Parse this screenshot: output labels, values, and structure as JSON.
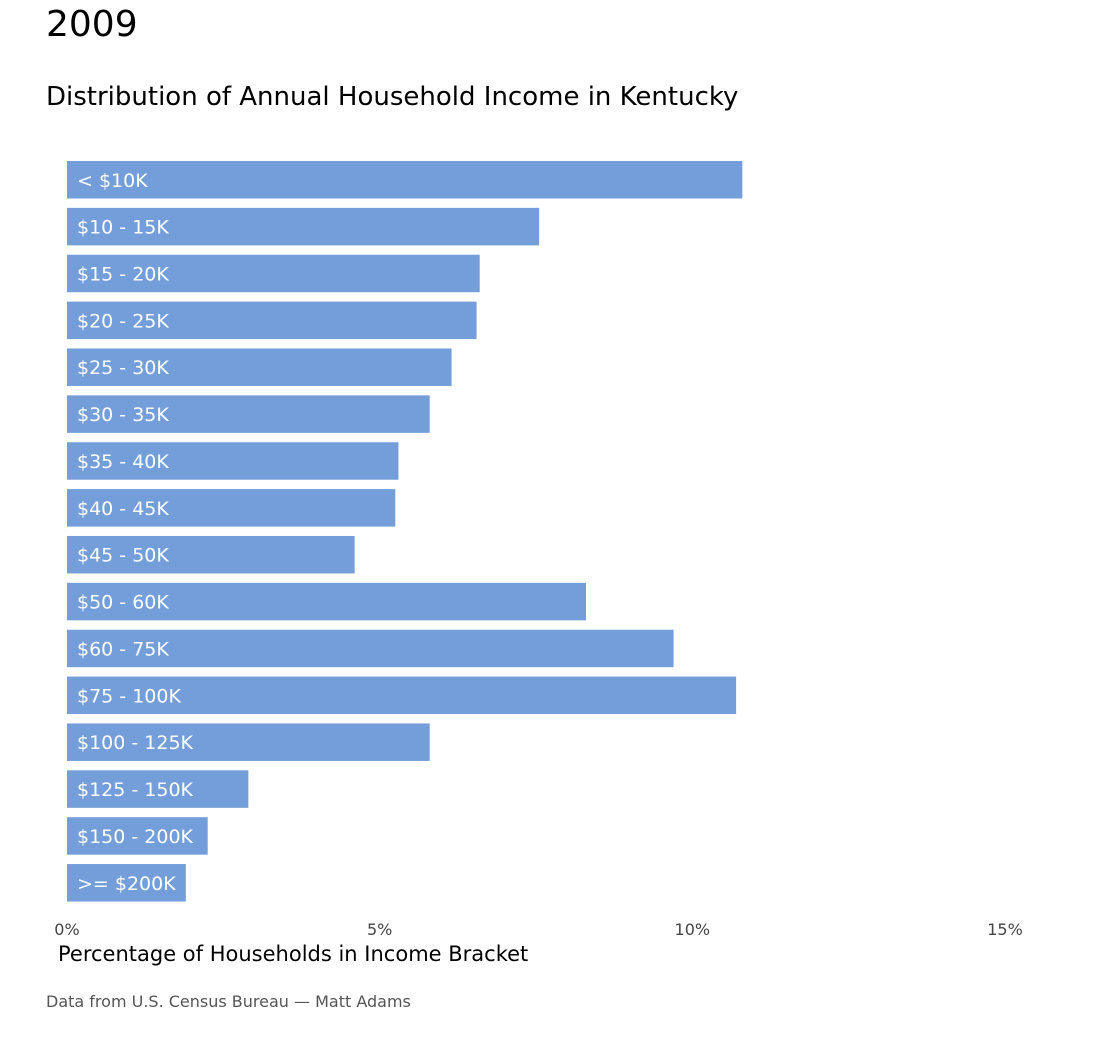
{
  "header": {
    "year": "2009",
    "subtitle": "Distribution of Annual Household Income in Kentucky"
  },
  "footer": {
    "source": "Data from U.S. Census Bureau — Matt Adams"
  },
  "chart_data": {
    "type": "bar",
    "orientation": "horizontal",
    "title": "Distribution of Annual Household Income in Kentucky",
    "xlabel": "Percentage of Households in Income Bracket",
    "ylabel": "",
    "xlim": [
      0,
      15
    ],
    "x_ticks": [
      0,
      5,
      10,
      15
    ],
    "x_tick_labels": [
      "0%",
      "5%",
      "10%",
      "15%"
    ],
    "categories": [
      "< $10K",
      "$10 - 15K",
      "$15 - 20K",
      "$20 - 25K",
      "$25 - 30K",
      "$30 - 35K",
      "$35 - 40K",
      "$40 - 45K",
      "$45 - 50K",
      "$50 - 60K",
      "$60 - 75K",
      "$75 - 100K",
      "$100 - 125K",
      "$125 - 150K",
      "$150 - 200K",
      ">= $200K"
    ],
    "values": [
      10.8,
      7.55,
      6.6,
      6.55,
      6.15,
      5.8,
      5.3,
      5.25,
      4.6,
      8.3,
      9.7,
      10.7,
      5.8,
      2.9,
      2.25,
      1.9
    ],
    "bar_color": "#739ed9",
    "grid": false,
    "legend": "none"
  }
}
